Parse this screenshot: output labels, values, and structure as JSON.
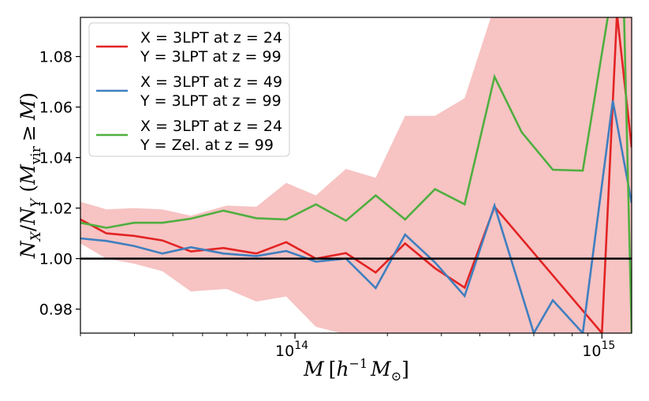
{
  "chart_data": {
    "type": "line",
    "xscale": "log",
    "xlim": [
      20000000000000,
      1250000000000000
    ],
    "ylim": [
      0.9705,
      1.0955
    ],
    "xlabel": "M [h⁻¹ M⊙]",
    "ylabel": "N_X/N_Y (M_vir ≥ M)",
    "yticks": [
      0.98,
      1.0,
      1.02,
      1.04,
      1.06,
      1.08
    ],
    "ytick_labels": [
      "0.98",
      "1.00",
      "1.02",
      "1.04",
      "1.06",
      "1.08"
    ],
    "xticks": [
      100000000000000,
      1000000000000000
    ],
    "xtick_labels": [
      {
        "base": "10",
        "exp": "14"
      },
      {
        "base": "10",
        "exp": "15"
      }
    ],
    "grid": false,
    "legend_position": "top-left",
    "reference_line": {
      "y": 1.0,
      "color": "#000000"
    },
    "band": {
      "color": "#f7c3c3",
      "x": [
        20000000000000,
        24300000000000,
        29900000000000,
        37000000000000,
        45800000000000,
        60000000000000,
        74800000000000,
        93600000000000,
        117000000000000,
        146600000000000,
        183200000000000,
        228400000000000,
        285800000000000,
        357000000000000,
        446900000000000,
        548000000000000,
        692000000000000,
        866000000000000,
        1085000000000000,
        1250000000000000
      ],
      "upper": [
        1.0225,
        1.0195,
        1.02,
        1.0195,
        1.017,
        1.021,
        1.0205,
        1.03,
        1.025,
        1.0355,
        1.032,
        1.0565,
        1.0565,
        1.0635,
        1.1,
        1.1,
        1.1,
        1.1,
        1.1,
        1.1
      ],
      "lower": [
        1.006,
        1.0,
        0.998,
        0.995,
        0.987,
        0.988,
        0.983,
        0.985,
        0.973,
        0.97,
        0.97,
        0.97,
        0.97,
        0.97,
        0.97,
        0.97,
        0.97,
        0.97,
        0.97,
        0.97
      ]
    },
    "series": [
      {
        "name_lines": [
          "X = 3LPT at z = 24",
          "Y = 3LPT at z = 99"
        ],
        "color": "#e32323",
        "x": [
          20000000000000,
          24300000000000,
          29900000000000,
          37000000000000,
          45800000000000,
          58500000000000,
          74800000000000,
          93600000000000,
          117000000000000,
          146600000000000,
          183200000000000,
          228400000000000,
          285800000000000,
          357000000000000,
          446900000000000,
          1000000000000000,
          1120000000000000,
          1250000000000000
        ],
        "y": [
          1.0155,
          1.01,
          1.009,
          1.0072,
          1.0028,
          1.0042,
          1.002,
          1.0065,
          1.0,
          1.0022,
          0.9945,
          1.006,
          0.9962,
          0.9885,
          1.0205,
          0.9705,
          1.097,
          1.044
        ]
      },
      {
        "name_lines": [
          "X = 3LPT at z = 49",
          "Y = 3LPT at z = 99"
        ],
        "color": "#3f7fbf",
        "x": [
          20000000000000,
          24300000000000,
          29900000000000,
          37000000000000,
          45800000000000,
          58500000000000,
          74800000000000,
          93600000000000,
          117000000000000,
          146600000000000,
          183200000000000,
          228400000000000,
          285800000000000,
          357000000000000,
          446900000000000,
          600000000000000,
          692000000000000,
          866000000000000,
          1085000000000000,
          1250000000000000
        ],
        "y": [
          1.008,
          1.007,
          1.005,
          1.002,
          1.0045,
          1.002,
          1.001,
          1.003,
          0.9988,
          1.0,
          0.9883,
          1.0095,
          0.9985,
          0.9852,
          1.021,
          0.9705,
          0.9835,
          0.9705,
          1.0625,
          1.022
        ]
      },
      {
        "name_lines": [
          "X = 3LPT at z = 24",
          "Y = Zel. at z = 99"
        ],
        "color": "#4faf3f",
        "x": [
          20000000000000,
          24300000000000,
          29900000000000,
          37000000000000,
          45800000000000,
          58500000000000,
          74800000000000,
          93600000000000,
          117000000000000,
          146600000000000,
          183200000000000,
          228400000000000,
          285800000000000,
          357000000000000,
          446900000000000,
          548000000000000,
          692000000000000,
          866000000000000,
          1050000000000000,
          1180000000000000,
          1250000000000000
        ],
        "y": [
          1.0142,
          1.0122,
          1.0142,
          1.0142,
          1.0158,
          1.019,
          1.016,
          1.0155,
          1.0215,
          1.015,
          1.025,
          1.0155,
          1.0275,
          1.0215,
          1.072,
          1.05,
          1.0352,
          1.0348,
          1.097,
          1.097,
          0.9705
        ]
      }
    ]
  }
}
